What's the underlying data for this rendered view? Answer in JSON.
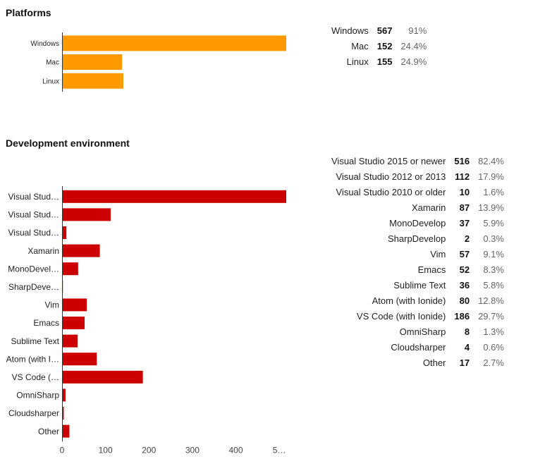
{
  "platforms": {
    "title": "Platforms",
    "chart_data": {
      "type": "bar",
      "orientation": "horizontal",
      "title": "Platforms",
      "categories": [
        "Windows",
        "Mac",
        "Linux"
      ],
      "values": [
        567,
        152,
        155
      ],
      "xlim": [
        0,
        567
      ],
      "color": "#FF9900",
      "grid": false,
      "legend": "none"
    },
    "stats": [
      {
        "label": "Windows",
        "count": "567",
        "percent": "91%"
      },
      {
        "label": "Mac",
        "count": "152",
        "percent": "24.4%"
      },
      {
        "label": "Linux",
        "count": "155",
        "percent": "24.9%"
      }
    ]
  },
  "devenv": {
    "title": "Development environment",
    "chart_data": {
      "type": "bar",
      "orientation": "horizontal",
      "title": "Development environment",
      "categories": [
        "Visual Stud…",
        "Visual Stud…",
        "Visual Stud…",
        "Xamarin",
        "MonoDevel…",
        "SharpDeve…",
        "Vim",
        "Emacs",
        "Sublime Text",
        "Atom (with I…",
        "VS Code (…",
        "OmniSharp",
        "Cloudsharper",
        "Other"
      ],
      "values": [
        516,
        112,
        10,
        87,
        37,
        2,
        57,
        52,
        36,
        80,
        186,
        8,
        4,
        17
      ],
      "xticks": [
        "0",
        "100",
        "200",
        "300",
        "400",
        "5…"
      ],
      "xtick_values": [
        0,
        100,
        200,
        300,
        400,
        500
      ],
      "xlim": [
        0,
        516
      ],
      "color": "#CC0000",
      "grid": false,
      "legend": "none"
    },
    "stats": [
      {
        "label": "Visual Studio 2015 or newer",
        "count": "516",
        "percent": "82.4%"
      },
      {
        "label": "Visual Studio 2012 or 2013",
        "count": "112",
        "percent": "17.9%"
      },
      {
        "label": "Visual Studio 2010 or older",
        "count": "10",
        "percent": "1.6%"
      },
      {
        "label": "Xamarin",
        "count": "87",
        "percent": "13.9%"
      },
      {
        "label": "MonoDevelop",
        "count": "37",
        "percent": "5.9%"
      },
      {
        "label": "SharpDevelop",
        "count": "2",
        "percent": "0.3%"
      },
      {
        "label": "Vim",
        "count": "57",
        "percent": "9.1%"
      },
      {
        "label": "Emacs",
        "count": "52",
        "percent": "8.3%"
      },
      {
        "label": "Sublime Text",
        "count": "36",
        "percent": "5.8%"
      },
      {
        "label": "Atom (with Ionide)",
        "count": "80",
        "percent": "12.8%"
      },
      {
        "label": "VS Code (with Ionide)",
        "count": "186",
        "percent": "29.7%"
      },
      {
        "label": "OmniSharp",
        "count": "8",
        "percent": "1.3%"
      },
      {
        "label": "Cloudsharper",
        "count": "4",
        "percent": "0.6%"
      },
      {
        "label": "Other",
        "count": "17",
        "percent": "2.7%"
      }
    ]
  }
}
